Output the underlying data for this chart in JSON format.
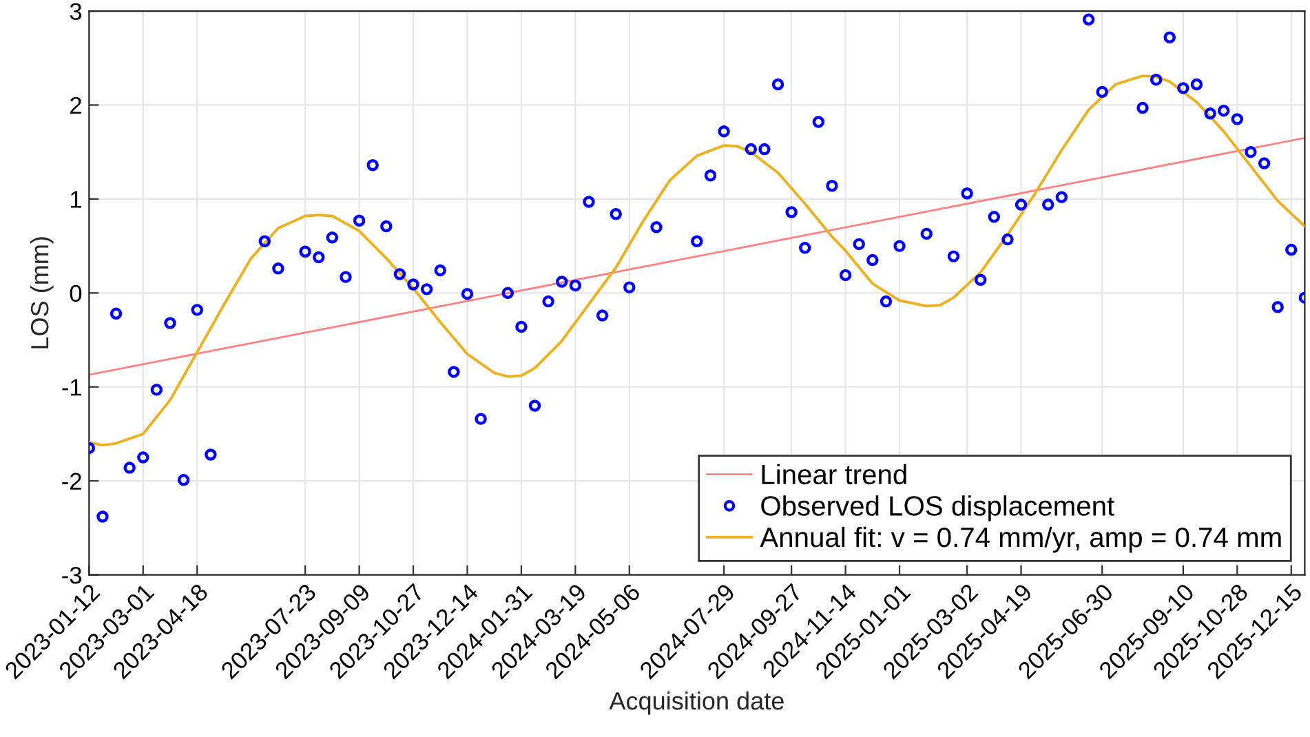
{
  "chart_data": {
    "type": "scatter",
    "xlabel": "Acquisition date",
    "ylabel": "LOS (mm)",
    "xlim": [
      "2023-01-12",
      "2025-12-27"
    ],
    "ylim": [
      -3,
      3
    ],
    "yticks": [
      -3,
      -2,
      -1,
      0,
      1,
      2,
      3
    ],
    "xticks": [
      "2023-01-12",
      "2023-03-01",
      "2023-04-18",
      "2023-07-23",
      "2023-09-09",
      "2023-10-27",
      "2023-12-14",
      "2024-01-31",
      "2024-03-19",
      "2024-05-06",
      "2024-07-29",
      "2024-09-27",
      "2024-11-14",
      "2025-01-01",
      "2025-03-02",
      "2025-04-19",
      "2025-06-30",
      "2025-09-10",
      "2025-10-28",
      "2025-12-15"
    ],
    "grid": true,
    "legend": "bottom right",
    "series": [
      {
        "name": "Linear trend",
        "type": "line",
        "color": "#ff8080",
        "line_style": "solid",
        "marker": "none",
        "x": [
          "2023-01-12",
          "2025-12-27"
        ],
        "values": [
          -0.87,
          1.65
        ]
      },
      {
        "name": "Observed LOS displacement",
        "color": "#0000ff",
        "marker": "circle",
        "x": [
          "2023-01-12",
          "2023-01-24",
          "2023-02-05",
          "2023-02-17",
          "2023-03-01",
          "2023-03-13",
          "2023-03-25",
          "2023-04-06",
          "2023-04-18",
          "2023-04-30",
          "2023-06-17",
          "2023-06-29",
          "2023-07-23",
          "2023-08-04",
          "2023-08-16",
          "2023-08-28",
          "2023-09-09",
          "2023-09-21",
          "2023-10-03",
          "2023-10-15",
          "2023-10-27",
          "2023-11-08",
          "2023-11-20",
          "2023-12-02",
          "2023-12-14",
          "2023-12-26",
          "2024-01-19",
          "2024-01-31",
          "2024-02-12",
          "2024-02-24",
          "2024-03-07",
          "2024-03-19",
          "2024-03-31",
          "2024-04-12",
          "2024-04-24",
          "2024-05-06",
          "2024-05-30",
          "2024-07-05",
          "2024-07-17",
          "2024-07-29",
          "2024-08-22",
          "2024-09-03",
          "2024-09-15",
          "2024-09-27",
          "2024-10-09",
          "2024-10-21",
          "2024-11-02",
          "2024-11-14",
          "2024-11-26",
          "2024-12-08",
          "2024-12-20",
          "2025-01-01",
          "2025-01-25",
          "2025-02-18",
          "2025-03-02",
          "2025-03-14",
          "2025-03-26",
          "2025-04-07",
          "2025-04-19",
          "2025-05-13",
          "2025-05-25",
          "2025-06-18",
          "2025-06-30",
          "2025-08-05",
          "2025-08-17",
          "2025-08-29",
          "2025-09-10",
          "2025-09-22",
          "2025-10-04",
          "2025-10-16",
          "2025-10-28",
          "2025-11-09",
          "2025-11-21",
          "2025-12-03",
          "2025-12-15",
          "2025-12-27"
        ],
        "values": [
          -1.65,
          -2.38,
          -0.22,
          -1.86,
          -1.75,
          -1.03,
          -0.32,
          -1.99,
          -0.18,
          -1.72,
          0.55,
          0.26,
          0.44,
          0.38,
          0.59,
          0.17,
          0.77,
          1.36,
          0.71,
          0.2,
          0.09,
          0.04,
          0.24,
          -0.84,
          -0.01,
          -1.34,
          0.0,
          -0.36,
          -1.2,
          -0.09,
          0.12,
          0.08,
          0.97,
          -0.24,
          0.84,
          0.06,
          0.7,
          0.55,
          1.25,
          1.72,
          1.53,
          1.53,
          2.22,
          0.86,
          0.48,
          1.82,
          1.14,
          0.19,
          0.52,
          0.35,
          -0.09,
          0.5,
          0.63,
          0.39,
          1.06,
          0.14,
          0.81,
          0.57,
          0.94,
          0.94,
          1.02,
          2.91,
          2.14,
          1.97,
          2.27,
          2.72,
          2.18,
          2.22,
          1.91,
          1.94,
          1.85,
          1.5,
          1.38,
          -0.15,
          0.46,
          -0.05
        ]
      },
      {
        "name": "Annual fit: v = 0.74 mm/yr, amp = 0.74 mm",
        "type": "line",
        "color": "#edb120",
        "line_style": "solid",
        "marker": "none",
        "x": [
          "2023-01-12",
          "2023-01-24",
          "2023-02-05",
          "2023-03-01",
          "2023-03-25",
          "2023-04-18",
          "2023-05-12",
          "2023-06-05",
          "2023-06-29",
          "2023-07-23",
          "2023-08-04",
          "2023-08-16",
          "2023-09-09",
          "2023-10-03",
          "2023-10-27",
          "2023-11-20",
          "2023-12-14",
          "2024-01-07",
          "2024-01-19",
          "2024-01-31",
          "2024-02-12",
          "2024-03-07",
          "2024-03-31",
          "2024-04-24",
          "2024-05-18",
          "2024-06-11",
          "2024-07-05",
          "2024-07-29",
          "2024-08-10",
          "2024-08-22",
          "2024-09-15",
          "2024-10-09",
          "2024-11-02",
          "2024-11-14",
          "2024-12-08",
          "2025-01-01",
          "2025-01-25",
          "2025-02-06",
          "2025-02-18",
          "2025-03-14",
          "2025-04-07",
          "2025-05-01",
          "2025-05-25",
          "2025-06-18",
          "2025-07-12",
          "2025-08-05",
          "2025-08-17",
          "2025-08-29",
          "2025-09-22",
          "2025-10-16",
          "2025-11-09",
          "2025-12-03",
          "2025-12-27"
        ],
        "values": [
          -1.59,
          -1.62,
          -1.6,
          -1.5,
          -1.14,
          -0.63,
          -0.12,
          0.37,
          0.69,
          0.82,
          0.83,
          0.82,
          0.66,
          0.37,
          0.05,
          -0.31,
          -0.65,
          -0.85,
          -0.89,
          -0.88,
          -0.8,
          -0.51,
          -0.12,
          0.27,
          0.76,
          1.2,
          1.46,
          1.57,
          1.56,
          1.5,
          1.28,
          0.95,
          0.6,
          0.45,
          0.1,
          -0.08,
          -0.14,
          -0.13,
          -0.05,
          0.22,
          0.62,
          1.05,
          1.52,
          1.95,
          2.22,
          2.31,
          2.3,
          2.25,
          2.03,
          1.72,
          1.35,
          0.98,
          0.71
        ]
      }
    ]
  }
}
